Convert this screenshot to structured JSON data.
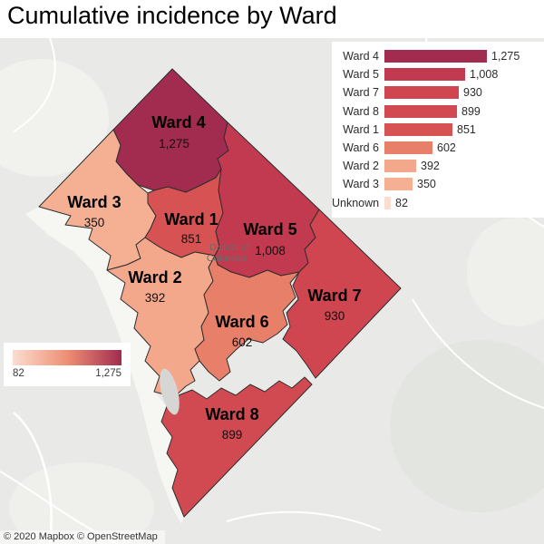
{
  "title": "Cumulative incidence by Ward",
  "map": {
    "district_label_line1": "District of",
    "district_label_line2": "Columbia",
    "attribution": "© 2020 Mapbox © OpenStreetMap"
  },
  "color_legend": {
    "min_label": "82",
    "max_label": "1,275",
    "stops": [
      "#fbddd1",
      "#ee8f74",
      "#a12c4f"
    ]
  },
  "chart_data": {
    "type": "bar",
    "orientation": "horizontal",
    "title": "Cumulative incidence by Ward",
    "legend_position": "top-right",
    "categories": [
      "Ward 4",
      "Ward 5",
      "Ward 7",
      "Ward 8",
      "Ward 1",
      "Ward 6",
      "Ward 2",
      "Ward 3",
      "Unknown"
    ],
    "values": [
      1275,
      1008,
      930,
      899,
      851,
      602,
      392,
      350,
      82
    ],
    "value_labels": [
      "1,275",
      "1,008",
      "930",
      "899",
      "851",
      "602",
      "392",
      "350",
      "82"
    ],
    "colors": [
      "#a12c4f",
      "#c13a4f",
      "#cf4550",
      "#d24a51",
      "#d65253",
      "#e87f68",
      "#f3a88b",
      "#f5b094",
      "#fbddd1"
    ],
    "xlim": [
      0,
      1275
    ]
  },
  "map_wards": [
    {
      "name": "Ward 1",
      "value": 851,
      "value_label": "851",
      "color": "#d65253"
    },
    {
      "name": "Ward 2",
      "value": 392,
      "value_label": "392",
      "color": "#f3a88b"
    },
    {
      "name": "Ward 3",
      "value": 350,
      "value_label": "350",
      "color": "#f5b094"
    },
    {
      "name": "Ward 4",
      "value": 1275,
      "value_label": "1,275",
      "color": "#a12c4f"
    },
    {
      "name": "Ward 5",
      "value": 1008,
      "value_label": "1,008",
      "color": "#c13a4f"
    },
    {
      "name": "Ward 6",
      "value": 602,
      "value_label": "602",
      "color": "#e87f68"
    },
    {
      "name": "Ward 7",
      "value": 930,
      "value_label": "930",
      "color": "#cf4550"
    },
    {
      "name": "Ward 8",
      "value": 899,
      "value_label": "899",
      "color": "#d24a51"
    }
  ]
}
